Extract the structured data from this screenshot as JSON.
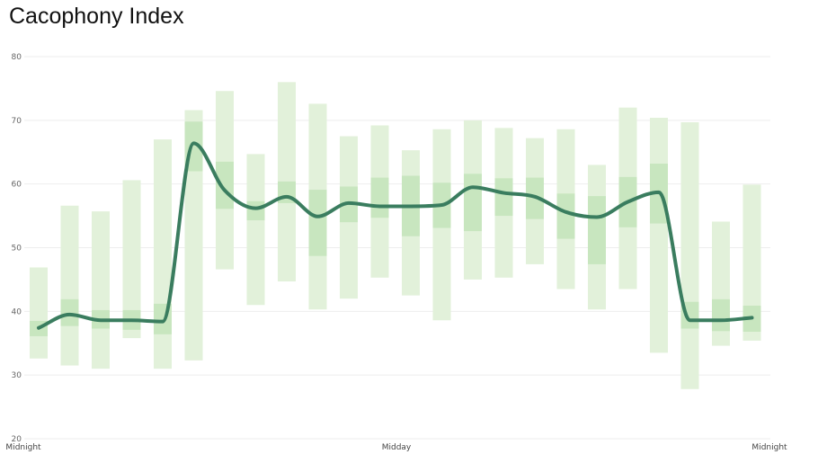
{
  "chart_data": {
    "type": "line",
    "title": "Cacophony Index",
    "xlabel": "",
    "ylabel": "",
    "ylim": [
      20,
      80
    ],
    "yticks": [
      20,
      30,
      40,
      50,
      60,
      70,
      80
    ],
    "x_tick_labels": [
      "Midnight",
      "Midday",
      "Midnight"
    ],
    "grid": true,
    "legend": "none",
    "colors": {
      "line": "#3a7d5f",
      "range_outer": "#e2f1da",
      "range_inner": "#c8e6bf",
      "grid": "#eeeeee"
    },
    "series": [
      {
        "type": "line",
        "values": [
          37.4,
          39.5,
          38.6,
          38.6,
          38.4,
          66.4,
          59.0,
          56.2,
          58.0,
          54.9,
          57.0,
          56.5,
          56.5,
          56.7,
          59.5,
          58.6,
          58.0,
          55.6,
          54.8,
          57.2,
          58.7,
          38.6,
          38.6,
          39.0
        ]
      },
      {
        "type": "range",
        "low": [
          32.6,
          31.5,
          31.0,
          35.8,
          31.0,
          32.3,
          46.6,
          41.0,
          44.7,
          40.3,
          42.0,
          45.3,
          42.5,
          38.6,
          45.0,
          45.3,
          47.4,
          43.5,
          40.3,
          43.5,
          33.5,
          27.8,
          34.6,
          35.4
        ],
        "high": [
          46.9,
          56.6,
          55.7,
          60.6,
          67.0,
          71.6,
          74.6,
          64.7,
          76.0,
          72.6,
          67.5,
          69.2,
          65.3,
          68.6,
          70.0,
          68.8,
          67.2,
          68.6,
          63.0,
          72.0,
          70.4,
          69.7,
          54.1,
          59.9
        ]
      },
      {
        "type": "range",
        "low": [
          36.1,
          37.7,
          37.3,
          37.1,
          36.4,
          62.0,
          56.1,
          54.3,
          57.0,
          48.7,
          54.0,
          54.7,
          51.8,
          53.1,
          52.6,
          55.0,
          54.5,
          51.4,
          47.4,
          53.2,
          53.8,
          37.3,
          36.9,
          36.8
        ],
        "high": [
          38.5,
          41.9,
          40.2,
          40.2,
          41.2,
          69.8,
          63.5,
          57.3,
          60.4,
          59.1,
          59.6,
          61.0,
          61.3,
          60.2,
          61.6,
          60.9,
          61.0,
          58.5,
          58.1,
          61.1,
          63.2,
          41.5,
          41.9,
          40.9
        ]
      }
    ]
  }
}
